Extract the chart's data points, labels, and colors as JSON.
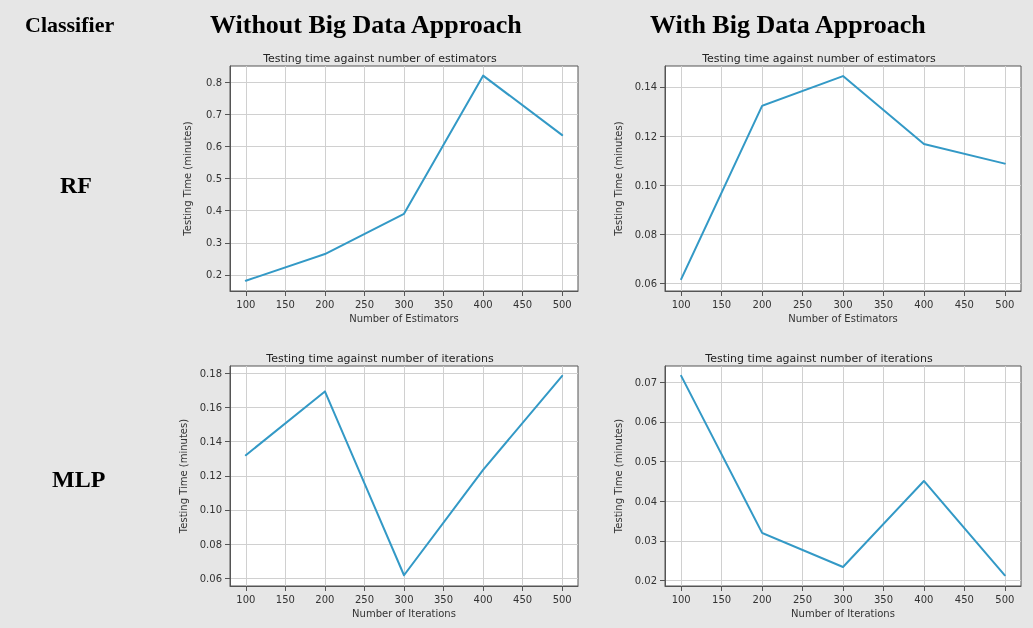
{
  "chart_data": [
    {
      "type": "line",
      "title": "Testing time against number of estimators",
      "xlabel": "Number of Estimators",
      "ylabel": "Testing Time (minutes)",
      "annotations": [
        "Classifier",
        "Without Big Data Approach",
        "RF"
      ],
      "x": [
        100,
        200,
        300,
        400,
        500
      ],
      "series": [
        {
          "color": "#3399c6",
          "values": [
            0.182,
            0.265,
            0.39,
            0.82,
            0.635
          ]
        }
      ],
      "xlim": [
        80,
        520
      ],
      "xticks": [
        100,
        150,
        200,
        250,
        300,
        350,
        400,
        450,
        500
      ],
      "ylim": [
        0.15,
        0.85
      ],
      "yticks": [
        0.2,
        0.3,
        0.4,
        0.5,
        0.6,
        0.7,
        0.8
      ],
      "grid": true
    },
    {
      "type": "line",
      "title": "Testing time against number of estimators",
      "xlabel": "Number of Estimators",
      "ylabel": "Testing Time (minutes)",
      "annotations": [
        "With Big Data Approach"
      ],
      "x": [
        100,
        200,
        300,
        400,
        500
      ],
      "series": [
        {
          "color": "#3399c6",
          "values": [
            0.0618,
            0.1323,
            0.1444,
            0.1168,
            0.1088
          ]
        }
      ],
      "xlim": [
        80,
        520
      ],
      "xticks": [
        100,
        150,
        200,
        250,
        300,
        350,
        400,
        450,
        500
      ],
      "ylim": [
        0.057,
        0.1485
      ],
      "yticks": [
        {
          "value": 0.06,
          "label": "0.06"
        },
        {
          "value": 0.08,
          "label": "0.08"
        },
        {
          "value": 0.1,
          "label": "0.10"
        },
        {
          "value": 0.12,
          "label": "0.12"
        },
        {
          "value": 0.14,
          "label": "0.14"
        }
      ],
      "grid": true
    },
    {
      "type": "line",
      "title": "Testing time against number of iterations",
      "xlabel": "Number of Iterations",
      "ylabel": "Testing Time (minutes)",
      "annotations": [
        "MLP"
      ],
      "x": [
        100,
        200,
        300,
        400,
        500
      ],
      "series": [
        {
          "color": "#3399c6",
          "values": [
            0.1321,
            0.1695,
            0.0617,
            0.1235,
            0.1786
          ]
        }
      ],
      "xlim": [
        80,
        520
      ],
      "xticks": [
        100,
        150,
        200,
        250,
        300,
        350,
        400,
        450,
        500
      ],
      "ylim": [
        0.0554,
        0.1844
      ],
      "yticks": [
        {
          "value": 0.06,
          "label": "0.06"
        },
        {
          "value": 0.08,
          "label": "0.08"
        },
        {
          "value": 0.1,
          "label": "0.10"
        },
        {
          "value": 0.12,
          "label": "0.12"
        },
        {
          "value": 0.14,
          "label": "0.14"
        },
        {
          "value": 0.16,
          "label": "0.16"
        },
        {
          "value": 0.18,
          "label": "0.18"
        }
      ],
      "grid": true
    },
    {
      "type": "line",
      "title": "Testing time against number of iterations",
      "xlabel": "Number of Iterations",
      "ylabel": "Testing Time (minutes)",
      "x": [
        100,
        200,
        300,
        400,
        500
      ],
      "series": [
        {
          "color": "#3399c6",
          "values": [
            0.0716,
            0.032,
            0.0234,
            0.0451,
            0.0213
          ]
        }
      ],
      "xlim": [
        80,
        520
      ],
      "xticks": [
        100,
        150,
        200,
        250,
        300,
        350,
        400,
        450,
        500
      ],
      "ylim": [
        0.0186,
        0.0741
      ],
      "yticks": [
        0.02,
        0.03,
        0.04,
        0.05,
        0.06,
        0.07
      ],
      "grid": true
    }
  ]
}
